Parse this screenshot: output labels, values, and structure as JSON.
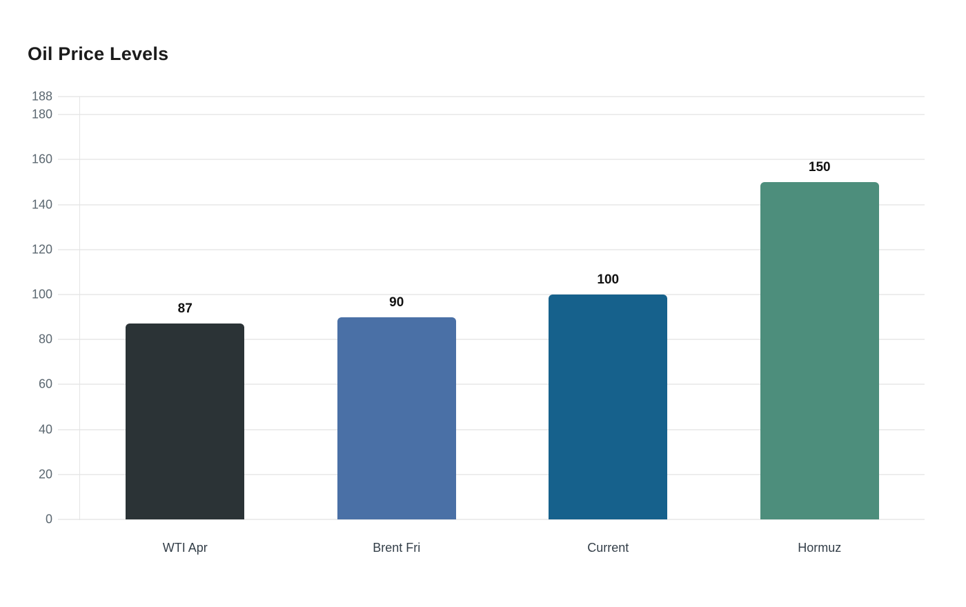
{
  "page": {
    "title": "Oil Price Levels"
  },
  "colors": {
    "background": "#ffffff",
    "title_text": "#1b1b1b",
    "gridline": "#ededed",
    "y_axis_line": "#e4e4e4",
    "tick_label": "#5b6770",
    "category_label": "#333e48",
    "value_label": "#111111"
  },
  "chart_data": {
    "type": "bar",
    "title": "Oil Price Levels",
    "categories": [
      "WTI Apr",
      "Brent Fri",
      "Current",
      "Hormuz"
    ],
    "values": [
      87,
      90,
      100,
      150
    ],
    "value_labels": [
      "87",
      "90",
      "100",
      "150"
    ],
    "bar_colors": [
      "#2b3336",
      "#4a70a6",
      "#16618c",
      "#4d8e7c"
    ],
    "xlabel": "",
    "ylabel": "",
    "ylim": [
      0,
      188
    ],
    "yticks": [
      0,
      20,
      40,
      60,
      80,
      100,
      120,
      140,
      160,
      180,
      188
    ],
    "grid": true,
    "legend": false,
    "legend_position": "none"
  }
}
